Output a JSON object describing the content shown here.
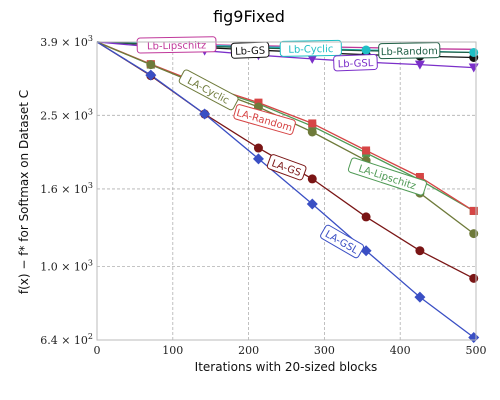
{
  "title": "fig9Fixed",
  "chart_data": {
    "type": "line",
    "title": "fig9Fixed",
    "xlabel": "Iterations with 20-sized blocks",
    "ylabel": "f(x) − f* for Softmax on Dataset C",
    "xlim": [
      0,
      500
    ],
    "ylim": [
      640,
      3900
    ],
    "yscale": "log",
    "xticks": [
      0,
      100,
      200,
      300,
      400,
      500
    ],
    "yticks": [
      {
        "value": 3900,
        "mant": "3.9",
        "exp": "3"
      },
      {
        "value": 2500,
        "mant": "2.5",
        "exp": "3"
      },
      {
        "value": 1600,
        "mant": "1.6",
        "exp": "3"
      },
      {
        "value": 1000,
        "mant": "1.0",
        "exp": "3"
      },
      {
        "value": 640,
        "mant": "6.4",
        "exp": "2"
      }
    ],
    "grid": true,
    "x": [
      0,
      71,
      142,
      213,
      284,
      355,
      426,
      497
    ],
    "series": [
      {
        "name": "Lb-Lipschitz",
        "color": "#c0399b",
        "marker": "none",
        "values": [
          3900,
          3870,
          3840,
          3810,
          3790,
          3770,
          3745,
          3730
        ]
      },
      {
        "name": "Lb-GS",
        "color": "#111111",
        "marker": "circle",
        "values": [
          3900,
          3840,
          3770,
          3710,
          3660,
          3610,
          3580,
          3550
        ]
      },
      {
        "name": "Lb-Cyclic",
        "color": "#1fbfc5",
        "marker": "circle",
        "values": [
          3900,
          3860,
          3820,
          3790,
          3750,
          3715,
          3690,
          3660
        ]
      },
      {
        "name": "Lb-Random",
        "color": "#1f5f45",
        "marker": "none",
        "values": [
          3900,
          3850,
          3800,
          3760,
          3730,
          3700,
          3680,
          3660
        ]
      },
      {
        "name": "Lb-GSL",
        "color": "#7b2fc9",
        "marker": "triangle",
        "values": [
          3900,
          3790,
          3700,
          3600,
          3520,
          3450,
          3400,
          3340
        ]
      },
      {
        "name": "LA-Lipschitz",
        "color": "#4f9a55",
        "marker": "square",
        "values": [
          3900,
          3400,
          2980,
          2680,
          2340,
          1990,
          1690,
          1400
        ]
      },
      {
        "name": "LA-Random",
        "color": "#d64545",
        "marker": "square",
        "values": [
          3900,
          3410,
          3000,
          2700,
          2380,
          2020,
          1720,
          1400
        ]
      },
      {
        "name": "LA-Cyclic",
        "color": "#6e7a3a",
        "marker": "circle",
        "values": [
          3900,
          3400,
          2970,
          2630,
          2260,
          1900,
          1560,
          1220
        ]
      },
      {
        "name": "LA-GS",
        "color": "#7a1515",
        "marker": "circle",
        "values": [
          3900,
          3180,
          2520,
          2050,
          1700,
          1350,
          1100,
          930
        ]
      },
      {
        "name": "LA-GSL",
        "color": "#3a4fc4",
        "marker": "diamond",
        "values": [
          3900,
          3190,
          2520,
          1920,
          1460,
          1100,
          830,
          650
        ]
      }
    ],
    "annotations": [
      {
        "text": "Lb-Lipschitz",
        "x": 105,
        "y": 3820,
        "color": "#c0399b",
        "angle": -1
      },
      {
        "text": "Lb-GS",
        "x": 202,
        "y": 3700,
        "color": "#111111",
        "angle": -2
      },
      {
        "text": "Lb-Cyclic",
        "x": 282,
        "y": 3740,
        "color": "#1fbfc5",
        "angle": -1
      },
      {
        "text": "Lb-Random",
        "x": 412,
        "y": 3690,
        "color": "#1f5f45",
        "angle": -1
      },
      {
        "text": "Lb-GSL",
        "x": 341,
        "y": 3430,
        "color": "#7b2fc9",
        "angle": -2
      },
      {
        "text": "LA-Cyclic",
        "x": 147,
        "y": 2910,
        "color": "#6e7a3a",
        "angle": 28
      },
      {
        "text": "LA-Random",
        "x": 221,
        "y": 2430,
        "color": "#d64545",
        "angle": 16
      },
      {
        "text": "LA-GS",
        "x": 250,
        "y": 1820,
        "color": "#7a1515",
        "angle": 20
      },
      {
        "text": "LA-Lipschitz",
        "x": 383,
        "y": 1720,
        "color": "#4f9a55",
        "angle": 18
      },
      {
        "text": "LA-GSL",
        "x": 323,
        "y": 1160,
        "color": "#3a4fc4",
        "angle": 30
      }
    ]
  }
}
